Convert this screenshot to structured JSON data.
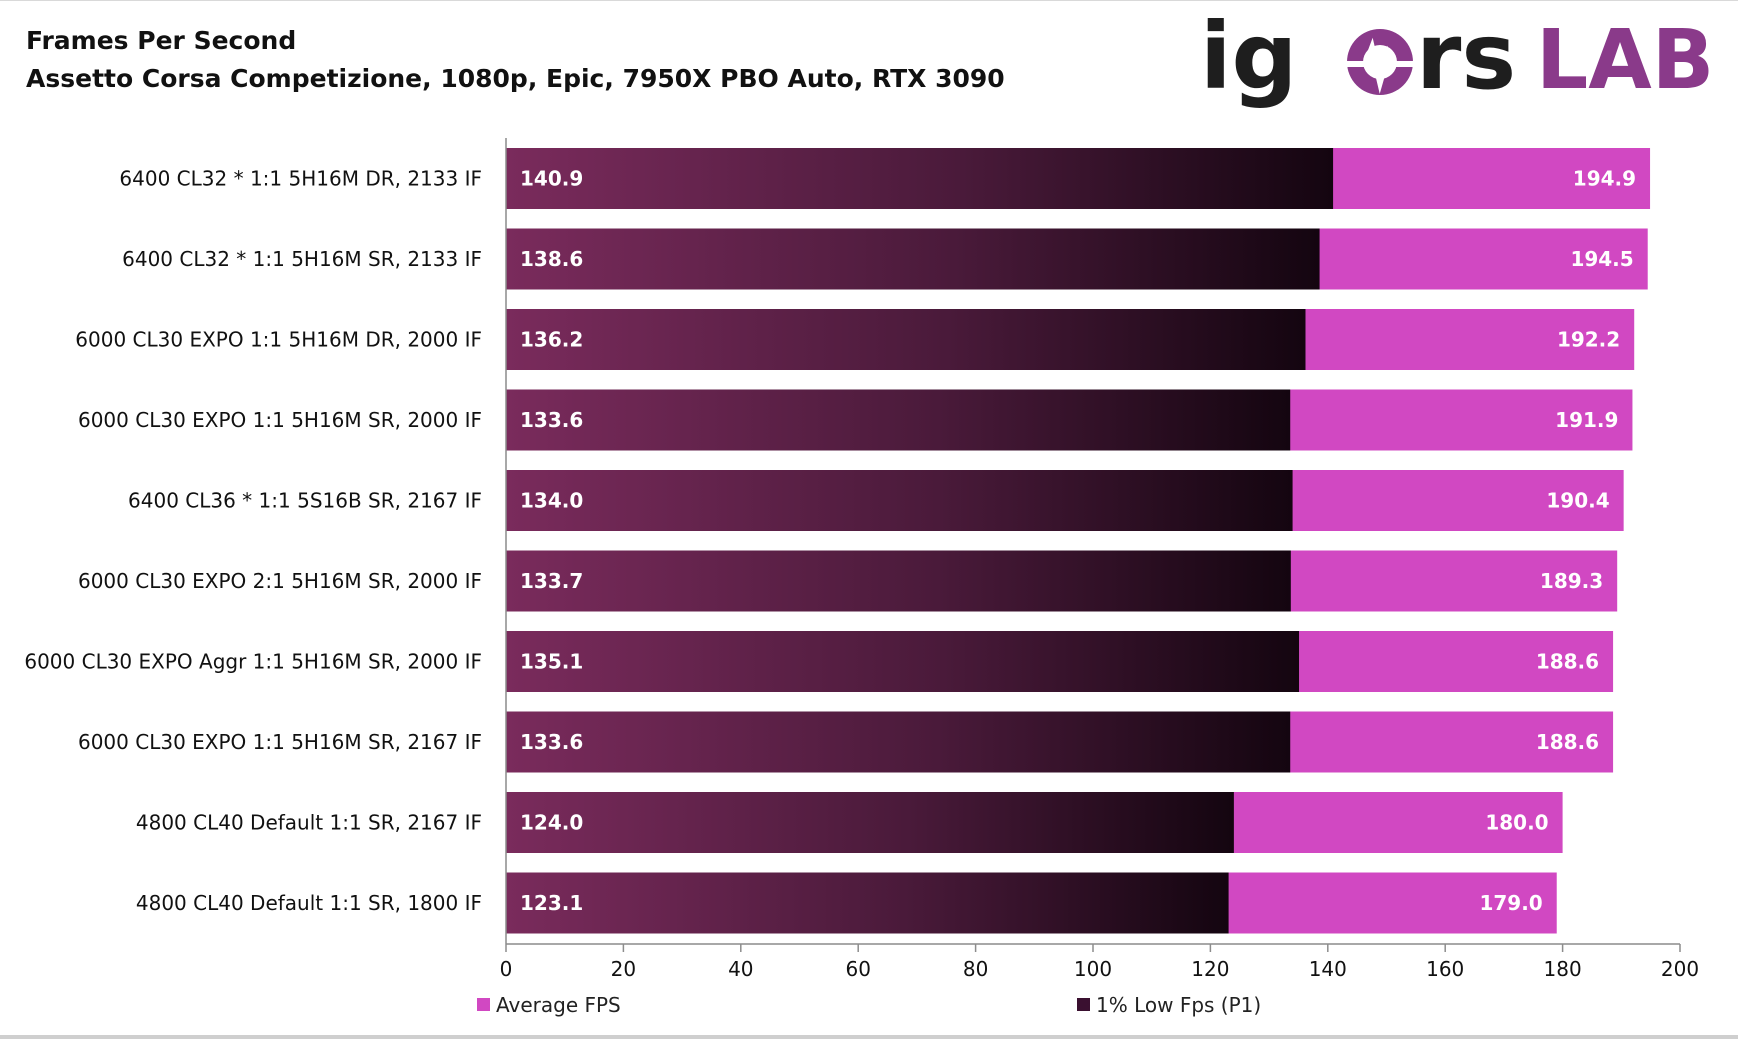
{
  "chart_data": {
    "type": "bar",
    "orientation": "horizontal",
    "title": "Frames Per Second",
    "subtitle": "Assetto Corsa Competizione, 1080p, Epic, 7950X PBO Auto, RTX 3090",
    "logo_text": "igor'sLAB",
    "categories": [
      "6400 CL32 * 1:1 5H16M DR, 2133 IF",
      "6400 CL32 * 1:1 5H16M SR, 2133 IF",
      "6000 CL30 EXPO 1:1 5H16M DR, 2000 IF",
      "6000 CL30 EXPO 1:1 5H16M SR, 2000 IF",
      "6400 CL36 * 1:1 5S16B SR, 2167 IF",
      "6000 CL30 EXPO 2:1 5H16M SR, 2000 IF",
      "6000 CL30 EXPO Aggr 1:1 5H16M SR, 2000 IF",
      "6000 CL30 EXPO 1:1 5H16M SR, 2167 IF",
      "4800 CL40 Default 1:1 SR, 2167 IF",
      "4800 CL40 Default 1:1 SR, 1800 IF"
    ],
    "series": [
      {
        "name": "Average FPS",
        "color": "#d148c2",
        "values": [
          194.9,
          194.5,
          192.2,
          191.9,
          190.4,
          189.3,
          188.6,
          188.6,
          180.0,
          179.0
        ],
        "labels": [
          "194.9",
          "194.5",
          "192.2",
          "191.9",
          "190.4",
          "189.3",
          "188.6",
          "188.6",
          "180.0",
          "179.0"
        ]
      },
      {
        "name": "1% Low Fps (P1)",
        "color": "#7a2b5c",
        "values": [
          140.9,
          138.6,
          136.2,
          133.6,
          134.0,
          133.7,
          135.1,
          133.6,
          124.0,
          123.1
        ],
        "labels": [
          "140.9",
          "138.6",
          "136.2",
          "133.6",
          "134.0",
          "133.7",
          "135.1",
          "133.6",
          "124.0",
          "123.1"
        ]
      }
    ],
    "xlim": [
      0,
      200
    ],
    "xticks": [
      "0",
      "20",
      "40",
      "60",
      "80",
      "100",
      "120",
      "140",
      "160",
      "180",
      "200"
    ],
    "legend_position": "bottom",
    "grid": false
  }
}
